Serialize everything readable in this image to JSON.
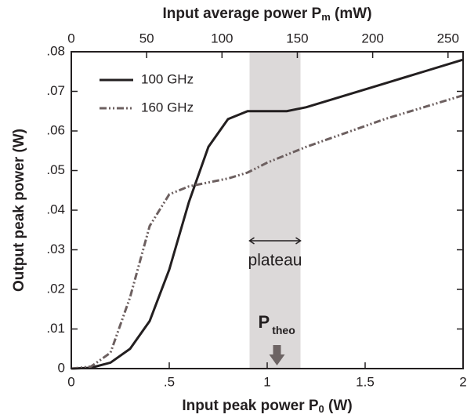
{
  "chart_data": {
    "type": "line",
    "x_label": {
      "text": "Input peak power P",
      "sub": "0",
      "suffix": " (W)"
    },
    "x2_label": {
      "text": "Input average power P",
      "sub": "m",
      "suffix": " (mW)"
    },
    "y_label": "Output  peak  power (W)",
    "x": [
      0,
      0.1,
      0.2,
      0.3,
      0.4,
      0.5,
      0.6,
      0.7,
      0.8,
      0.9,
      1.0,
      1.1,
      1.2,
      1.4,
      1.6,
      1.8,
      2.0
    ],
    "series": [
      {
        "name": "100 GHz",
        "color": "#231f20",
        "style": "solid",
        "values": [
          0,
          0.0002,
          0.0015,
          0.005,
          0.012,
          0.025,
          0.042,
          0.056,
          0.063,
          0.065,
          0.065,
          0.065,
          0.066,
          0.069,
          0.072,
          0.075,
          0.078
        ]
      },
      {
        "name": "160 GHz",
        "color": "#6d6060",
        "style": "dashdotdot",
        "values": [
          0,
          0.0005,
          0.004,
          0.018,
          0.036,
          0.044,
          0.046,
          0.047,
          0.048,
          0.0495,
          0.052,
          0.054,
          0.056,
          0.0595,
          0.063,
          0.066,
          0.069
        ]
      }
    ],
    "xlim": [
      0,
      2
    ],
    "xticks": [
      0,
      {
        "value": 0.5,
        "label": ".5"
      },
      1,
      1.5,
      2
    ],
    "x2lim": [
      0,
      260
    ],
    "x2ticks": [
      0,
      50,
      100,
      150,
      200,
      250
    ],
    "ylim": [
      0,
      0.08
    ],
    "yticks": [
      0,
      {
        "value": 0.01,
        "label": ".01"
      },
      {
        "value": 0.02,
        "label": ".02"
      },
      {
        "value": 0.03,
        "label": ".03"
      },
      {
        "value": 0.04,
        "label": ".04"
      },
      {
        "value": 0.05,
        "label": ".05"
      },
      {
        "value": 0.06,
        "label": ".06"
      },
      {
        "value": 0.07,
        "label": ".07"
      },
      {
        "value": 0.08,
        "label": ".08"
      }
    ],
    "shaded_region": {
      "xlim": [
        0.91,
        1.17
      ],
      "color": "#dcd9d9",
      "label": "plateau"
    },
    "annotation": {
      "text": "P",
      "sub": "theo",
      "x": 1.05,
      "color": "#6d6464"
    },
    "legend": "upper left"
  }
}
